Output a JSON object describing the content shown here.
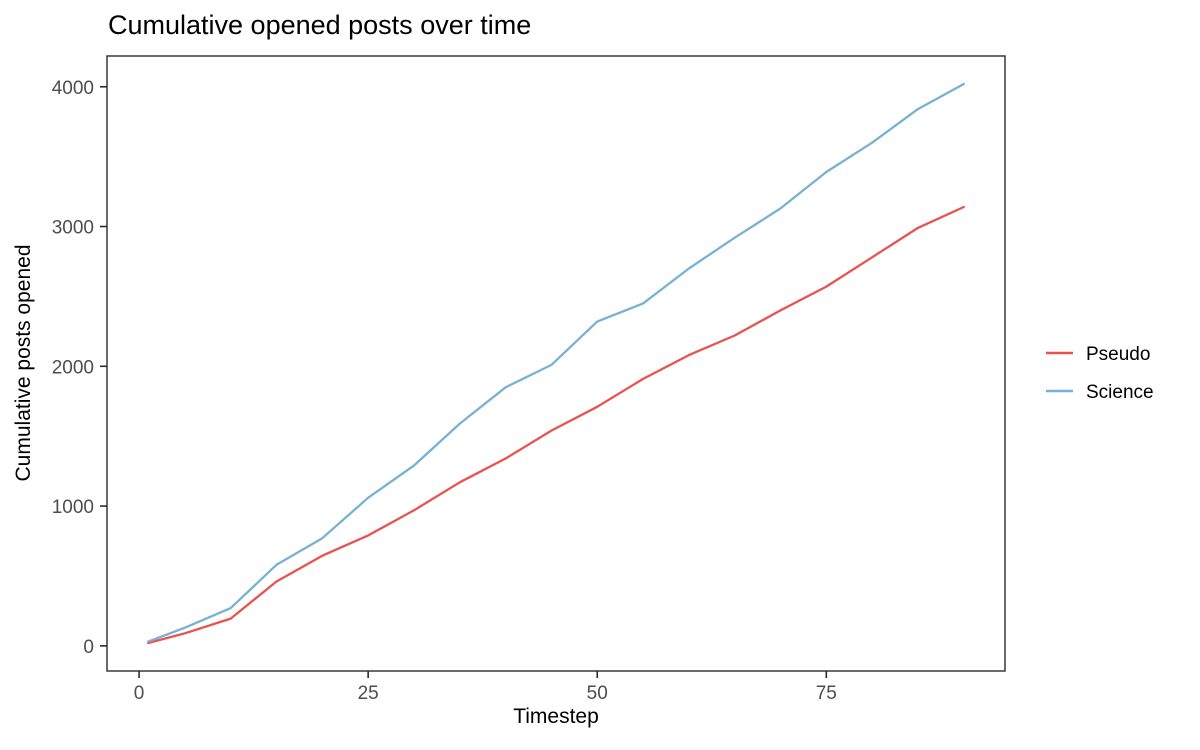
{
  "chart_data": {
    "type": "line",
    "title": "Cumulative opened posts over time",
    "xlabel": "Timestep",
    "ylabel": "Cumulative posts opened",
    "x": [
      1,
      5,
      10,
      15,
      20,
      25,
      30,
      35,
      40,
      45,
      50,
      55,
      60,
      65,
      70,
      75,
      80,
      85,
      90
    ],
    "series": [
      {
        "name": "Pseudo",
        "color": "#E8534F",
        "values": [
          20,
          90,
          195,
          460,
          645,
          790,
          970,
          1170,
          1340,
          1540,
          1710,
          1910,
          2080,
          2220,
          2400,
          2570,
          2780,
          2990,
          3140
        ]
      },
      {
        "name": "Science",
        "color": "#77B1D3",
        "values": [
          30,
          130,
          270,
          580,
          770,
          1060,
          1290,
          1590,
          1850,
          2010,
          2320,
          2450,
          2700,
          2920,
          3130,
          3390,
          3600,
          3840,
          4020
        ]
      }
    ],
    "x_ticks": [
      0,
      25,
      50,
      75
    ],
    "y_ticks": [
      0,
      1000,
      2000,
      3000,
      4000
    ],
    "xlim": [
      -3.5,
      94.5
    ],
    "ylim": [
      -180,
      4220
    ],
    "grid": false,
    "legend_position": "right",
    "axis_text_color": "#4D4D4D",
    "axis_line_color": "#2B2B2B",
    "background": "#FFFFFF"
  }
}
